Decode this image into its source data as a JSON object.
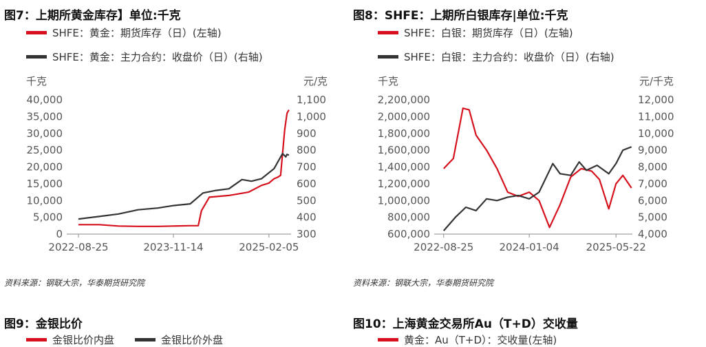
{
  "colors": {
    "red": "#d6101c",
    "black": "#333333"
  },
  "fig7": {
    "title": "图7：上期所黄金库存】单位:千克",
    "legend": [
      "SHFE：黄金：期货库存（日）(左轴)",
      "SHFE：黄金：主力合约：收盘价（日）(右轴)"
    ],
    "left_unit": "千克",
    "right_unit": "元/克",
    "source": "资料来源：钢联大宗，华泰期货研究院"
  },
  "fig8": {
    "title": "图8：SHFE：上期所白银库存|单位:千克",
    "legend": [
      "SHFE：白银：期货库存（日）(左轴)",
      "SHFE：白银：主力合约：收盘价（日）(右轴)"
    ],
    "left_unit": "千克",
    "right_unit": "元/千克",
    "source": "资料来源：钢联大宗，华泰期货研究院"
  },
  "fig9": {
    "title": "图9：金银比价",
    "legend": [
      "金银比价内盘",
      "金银比价外盘"
    ]
  },
  "fig10": {
    "title": "图10：上海黄金交易所Au（T+D）交收量",
    "legend": [
      "黄金：Au（T+D）：交收量(左轴)"
    ]
  },
  "chart_data": [
    {
      "type": "line",
      "title": "图7：上期所黄金库存】单位:千克",
      "x_ticks": [
        "2022-08-25",
        "2023-11-14",
        "2025-02-05"
      ],
      "y_left": {
        "label": "千克",
        "lim": [
          0,
          40000
        ],
        "ticks": [
          "0",
          "5,000",
          "10,000",
          "15,000",
          "20,000",
          "25,000",
          "30,000",
          "35,000",
          "40,000"
        ]
      },
      "y_right": {
        "label": "元/克",
        "lim": [
          300,
          1100
        ],
        "ticks": [
          "300",
          "400",
          "500",
          "600",
          "700",
          "800",
          "900",
          "1,000",
          "1,100"
        ]
      },
      "series": [
        {
          "name": "SHFE：黄金：期货库存（日）(左轴)",
          "axis": "left",
          "color": "#d6101c",
          "x": [
            "2022-08-25",
            "2022-12-01",
            "2023-03-01",
            "2023-06-01",
            "2023-09-01",
            "2023-11-14",
            "2024-02-01",
            "2024-03-10",
            "2024-03-25",
            "2024-05-01",
            "2024-08-01",
            "2024-11-01",
            "2025-01-01",
            "2025-02-05",
            "2025-03-01",
            "2025-03-20",
            "2025-04-01",
            "2025-04-20",
            "2025-05-01",
            "2025-05-10"
          ],
          "values": [
            2800,
            2800,
            2400,
            2300,
            2300,
            2400,
            2500,
            2500,
            7000,
            11000,
            11500,
            12500,
            14500,
            15200,
            16500,
            17000,
            17500,
            31000,
            36000,
            37000
          ]
        },
        {
          "name": "SHFE：黄金：主力合约：收盘价（日）(右轴)",
          "axis": "right",
          "color": "#333333",
          "x": [
            "2022-08-25",
            "2022-12-01",
            "2023-03-01",
            "2023-06-01",
            "2023-09-01",
            "2023-11-14",
            "2024-02-01",
            "2024-04-01",
            "2024-06-01",
            "2024-08-01",
            "2024-10-01",
            "2024-11-15",
            "2025-01-01",
            "2025-03-01",
            "2025-04-10",
            "2025-04-25",
            "2025-05-01",
            "2025-05-10"
          ],
          "values": [
            390,
            405,
            420,
            445,
            455,
            470,
            480,
            545,
            560,
            570,
            625,
            615,
            630,
            690,
            780,
            760,
            775,
            770
          ]
        }
      ]
    },
    {
      "type": "line",
      "title": "图8：SHFE：上期所白银库存|单位:千克",
      "x_ticks": [
        "2022-08-25",
        "2024-01-04",
        "2025-05-22"
      ],
      "y_left": {
        "label": "千克",
        "lim": [
          600000,
          2200000
        ],
        "ticks": [
          "600,000",
          "800,000",
          "1,000,000",
          "1,200,000",
          "1,400,000",
          "1,600,000",
          "1,800,000",
          "2,000,000",
          "2,200,000"
        ]
      },
      "y_right": {
        "label": "元/千克",
        "lim": [
          4000,
          12000
        ],
        "ticks": [
          "4,000",
          "5,000",
          "6,000",
          "7,000",
          "8,000",
          "9,000",
          "10,000",
          "11,000",
          "12,000"
        ]
      },
      "series": [
        {
          "name": "SHFE：白银：期货库存（日）(左轴)",
          "axis": "left",
          "color": "#d6101c",
          "x": [
            "2022-08-25",
            "2022-10-20",
            "2022-12-15",
            "2023-01-20",
            "2023-03-01",
            "2023-05-01",
            "2023-07-01",
            "2023-09-01",
            "2023-11-01",
            "2024-01-04",
            "2024-03-01",
            "2024-05-01",
            "2024-07-01",
            "2024-09-01",
            "2024-11-01",
            "2025-01-01",
            "2025-02-15",
            "2025-04-10",
            "2025-05-22",
            "2025-07-01",
            "2025-08-20"
          ],
          "values": [
            1380000,
            1500000,
            2100000,
            2080000,
            1780000,
            1600000,
            1380000,
            1100000,
            1050000,
            1100000,
            1000000,
            680000,
            950000,
            1280000,
            1380000,
            1350000,
            1250000,
            900000,
            1200000,
            1300000,
            1150000
          ]
        },
        {
          "name": "SHFE：白银：主力合约：收盘价（日）(右轴)",
          "axis": "right",
          "color": "#333333",
          "x": [
            "2022-08-25",
            "2022-11-01",
            "2023-01-01",
            "2023-03-01",
            "2023-05-01",
            "2023-07-01",
            "2023-09-01",
            "2023-11-01",
            "2024-01-04",
            "2024-03-01",
            "2024-05-20",
            "2024-07-01",
            "2024-09-01",
            "2024-10-20",
            "2024-12-01",
            "2025-02-01",
            "2025-04-10",
            "2025-05-22",
            "2025-07-01",
            "2025-08-20"
          ],
          "values": [
            4200,
            5000,
            5600,
            5400,
            6100,
            6000,
            6200,
            6300,
            6100,
            6500,
            8200,
            7600,
            7500,
            8300,
            7800,
            8100,
            7600,
            8200,
            9000,
            9200
          ]
        }
      ]
    }
  ]
}
